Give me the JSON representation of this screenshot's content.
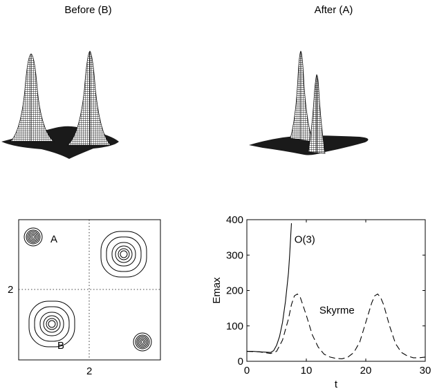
{
  "panels": {
    "top_left_title": "Before (B)",
    "top_right_title": "After (A)",
    "contour": {
      "x_tick": "2",
      "y_tick": "2",
      "label_a": "A",
      "label_b": "B"
    }
  },
  "chart_data": {
    "type": "line",
    "xlabel": "t",
    "ylabel": "Emax",
    "xlim": [
      0,
      30
    ],
    "ylim": [
      0,
      400
    ],
    "x_ticks": [
      "0",
      "10",
      "20",
      "30"
    ],
    "y_ticks": [
      "0",
      "100",
      "200",
      "300",
      "400"
    ],
    "grid": false,
    "series": [
      {
        "name": "O(3)",
        "style": "solid",
        "x": [
          0,
          1,
          2,
          3,
          4,
          4.5,
          5,
          5.5,
          6,
          6.5,
          7,
          7.2,
          7.4,
          7.5
        ],
        "y": [
          28,
          28,
          27,
          26,
          25,
          30,
          45,
          70,
          110,
          170,
          250,
          300,
          360,
          390
        ]
      },
      {
        "name": "Skyrme",
        "style": "dashed",
        "x": [
          0,
          2,
          4,
          5,
          6,
          7,
          7.5,
          8,
          8.5,
          9,
          10,
          11,
          12,
          13,
          14,
          15,
          16,
          17,
          18,
          19,
          20,
          21,
          21.5,
          22,
          22.5,
          23,
          24,
          25,
          26,
          27,
          28,
          29,
          30
        ],
        "y": [
          28,
          27,
          22,
          28,
          60,
          120,
          160,
          185,
          190,
          180,
          130,
          75,
          40,
          20,
          12,
          8,
          7,
          12,
          25,
          55,
          110,
          165,
          185,
          190,
          180,
          160,
          100,
          50,
          25,
          15,
          10,
          10,
          12
        ]
      }
    ],
    "annotations": [
      "O(3)",
      "Skyrme"
    ]
  }
}
